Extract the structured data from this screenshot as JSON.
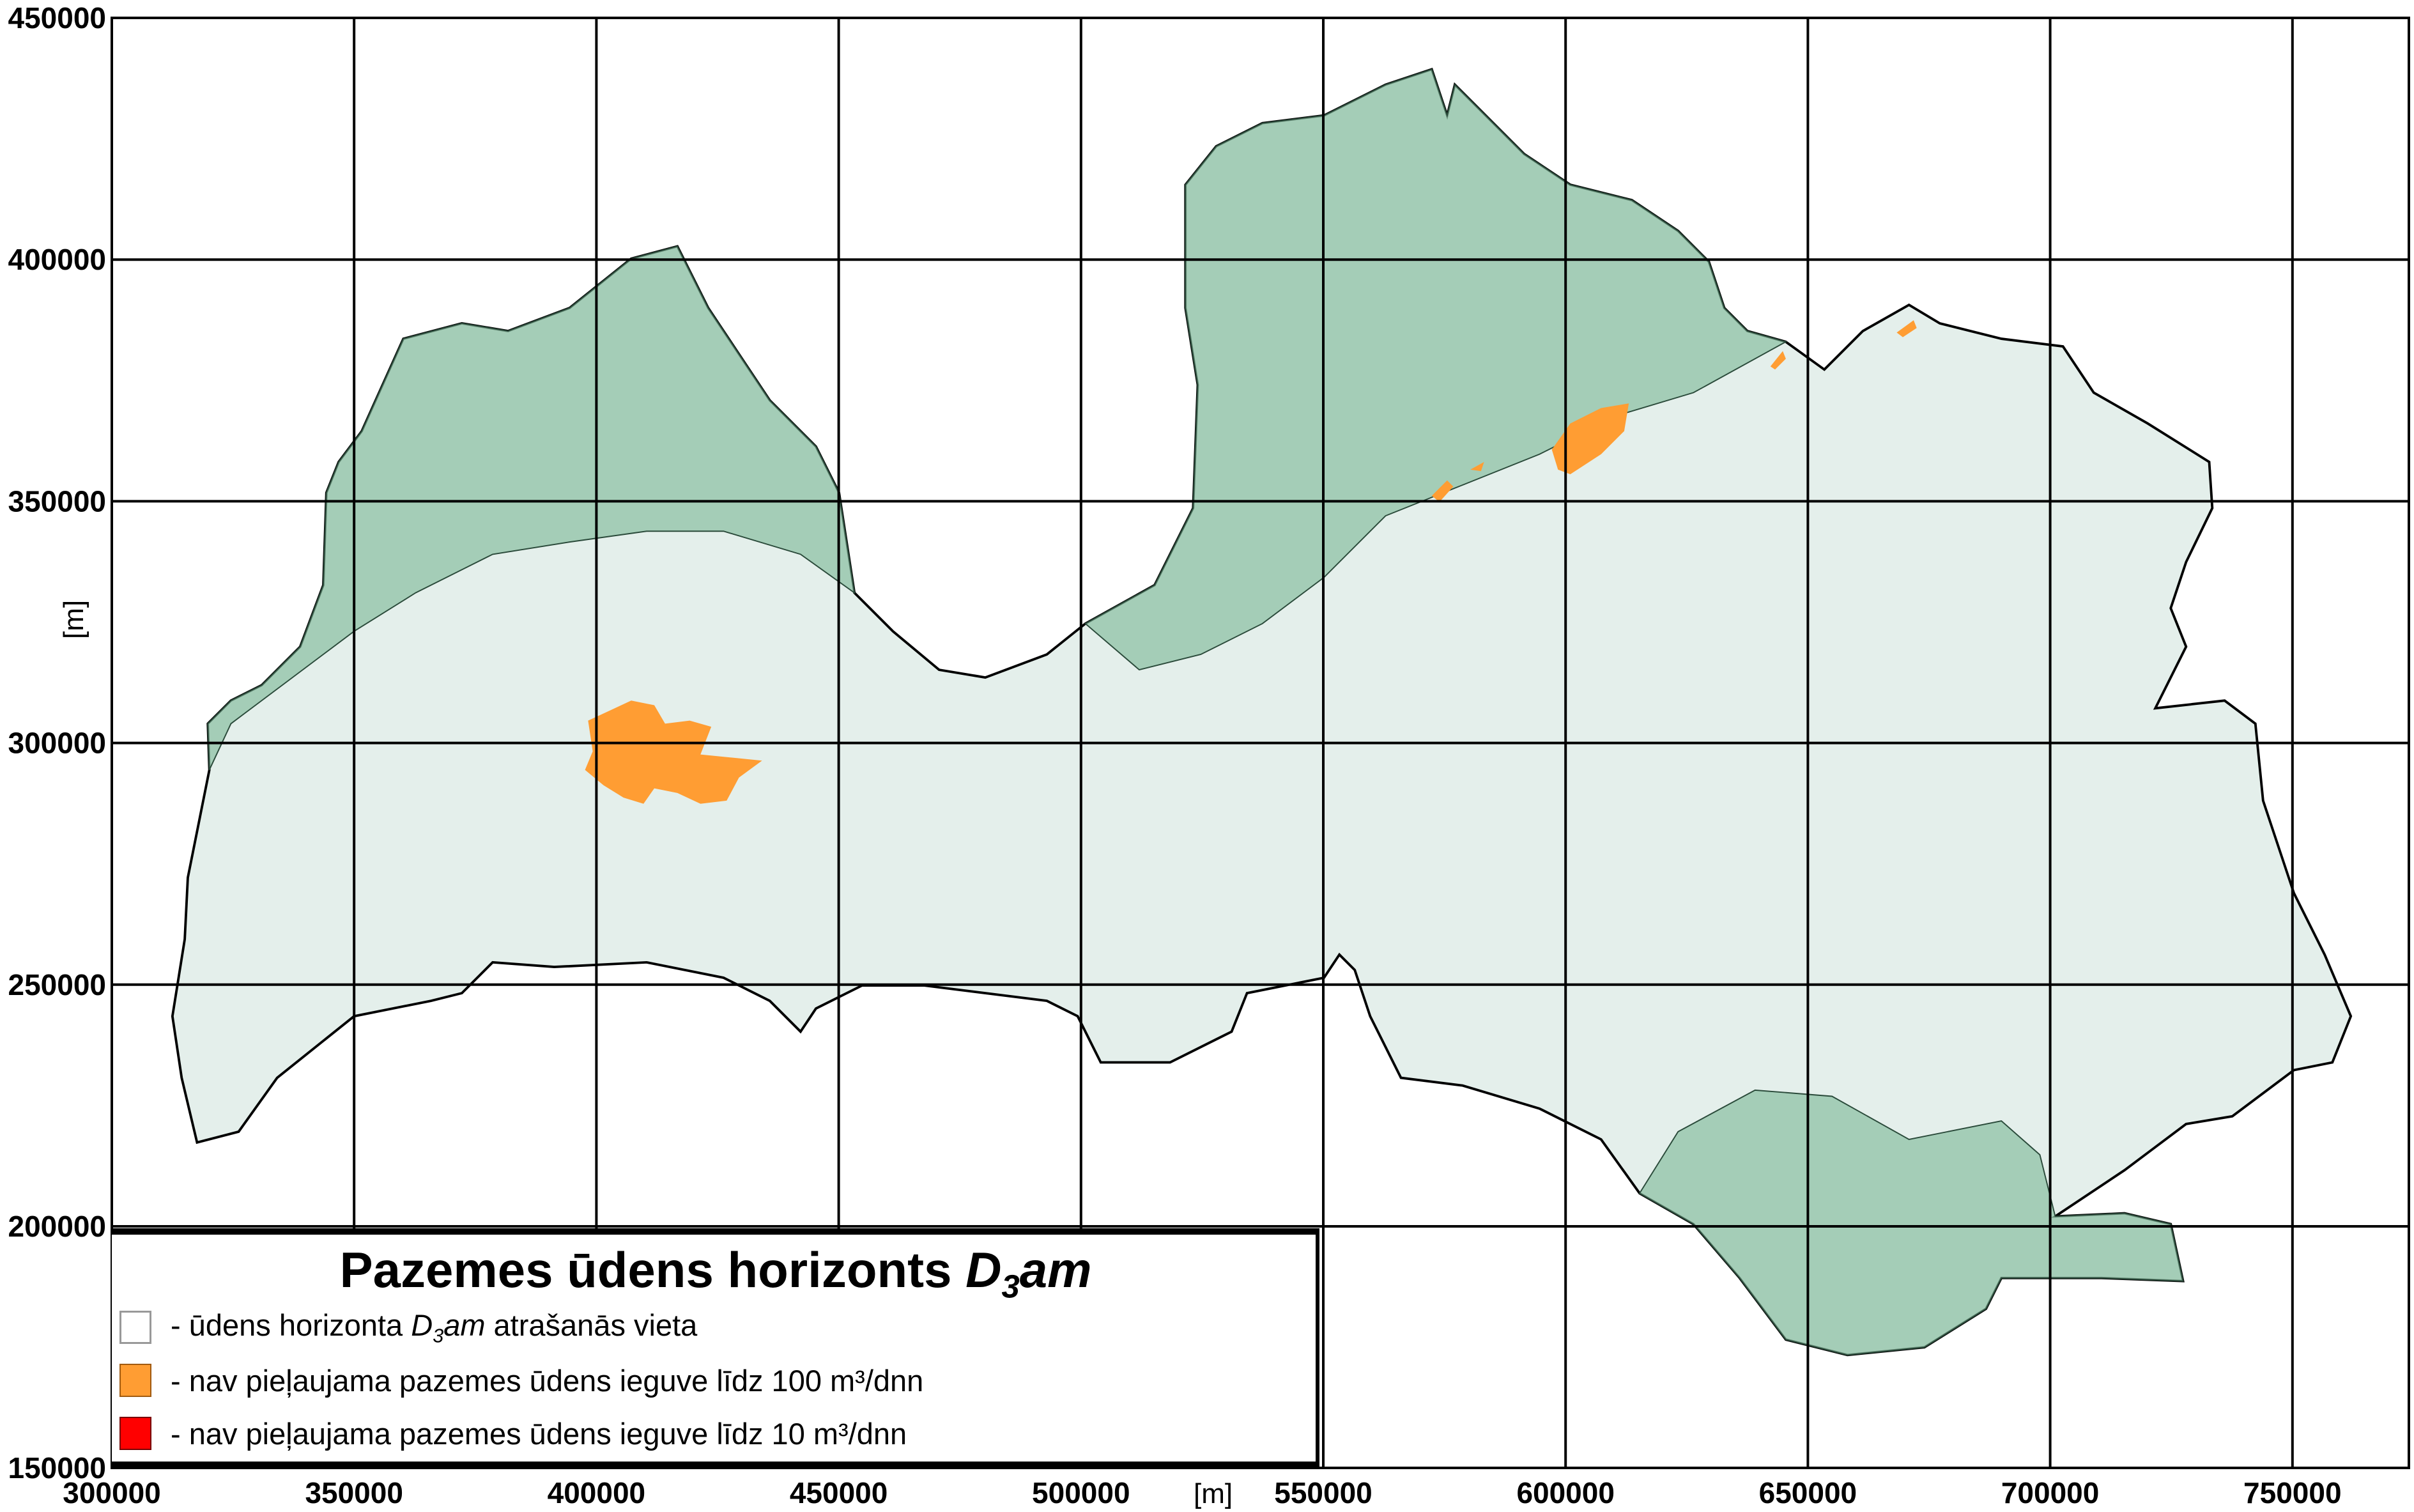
{
  "map": {
    "x_ticks": [
      "300000",
      "350000",
      "400000",
      "450000",
      "500000",
      "550000",
      "600000",
      "650000",
      "700000",
      "750000"
    ],
    "y_ticks": [
      "450000",
      "400000",
      "350000",
      "300000",
      "250000",
      "200000",
      "150000"
    ],
    "x_unit": "[m]",
    "y_unit": "[m]",
    "colors": {
      "base": "#e4efeb",
      "green_zone": "#8fc2a6",
      "orange": "#ff9d33",
      "red": "#ff0000",
      "outline": "#000000"
    }
  },
  "legend": {
    "title_main": "Pazemes ūdens horizonts ",
    "title_symbol": "D",
    "title_sub": "3",
    "title_suffix": "am",
    "items": [
      {
        "prefix": "- ūdens horizonta ",
        "symbol": "D",
        "sub": "3",
        "suffix": "am",
        "rest": " atrašanās vieta",
        "color": "#ffffff"
      },
      {
        "label": "- nav pieļaujama pazemes ūdens ieguve līdz 100 m³/dnn",
        "color": "#ff9d33"
      },
      {
        "label": "- nav pieļaujama pazemes ūdens ieguve līdz 10 m³/dnn",
        "color": "#ff0000"
      }
    ]
  }
}
